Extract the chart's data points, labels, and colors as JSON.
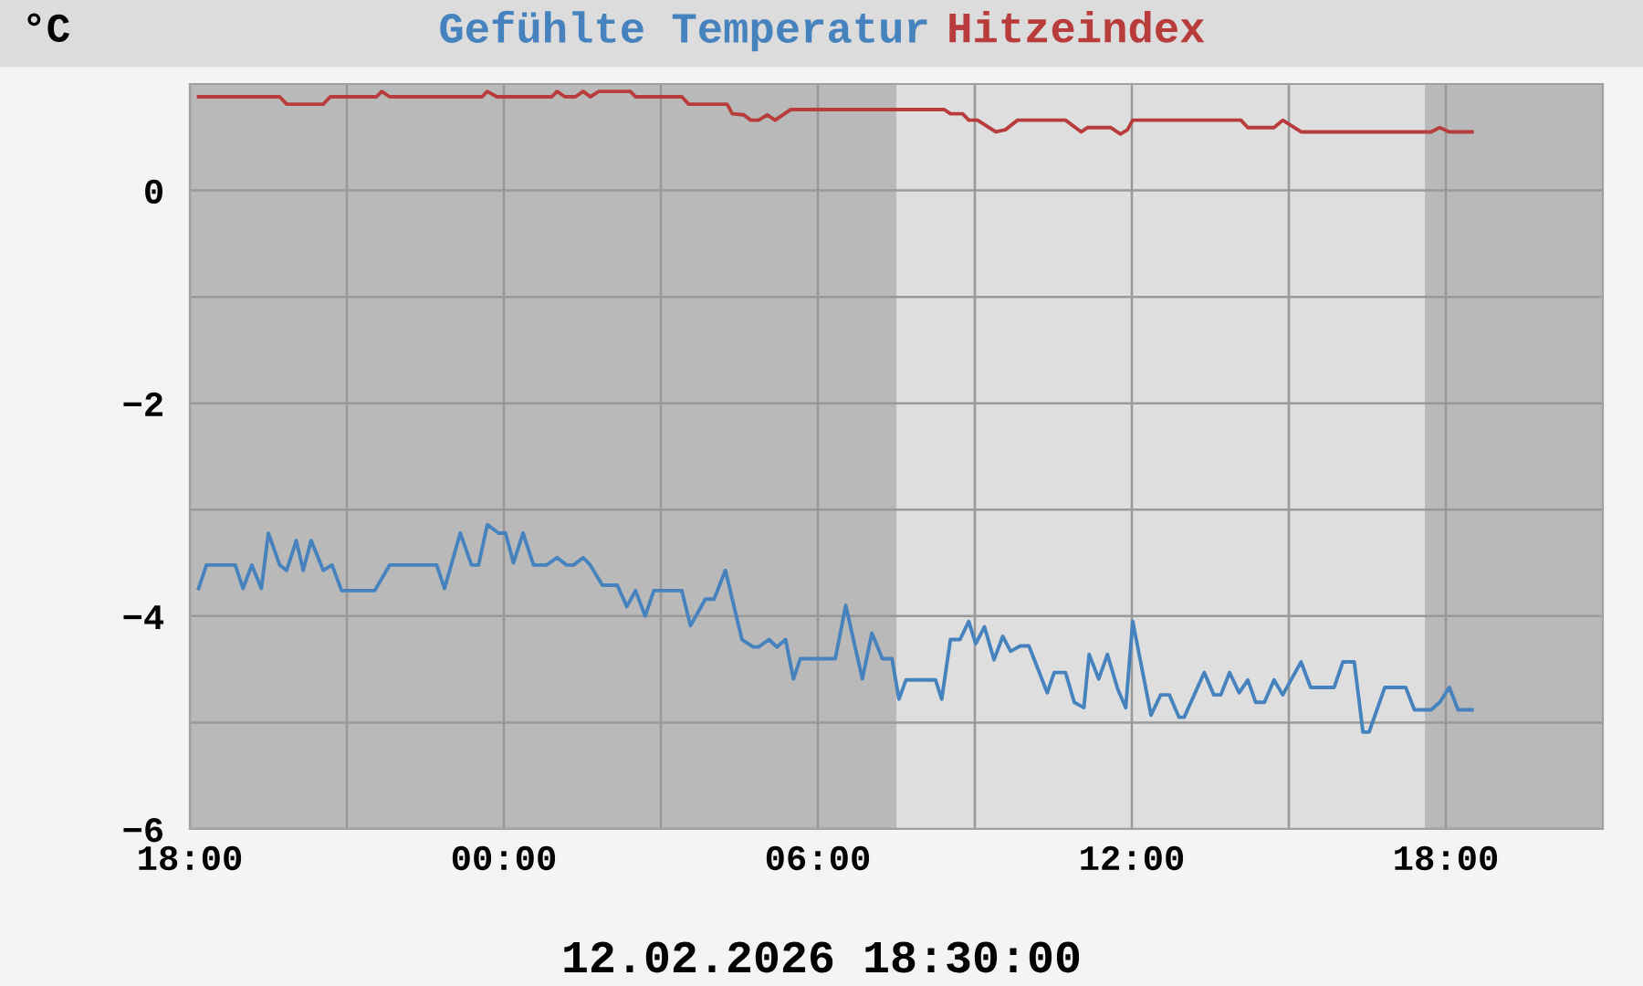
{
  "chart_data": {
    "type": "line",
    "ylabel": "°C",
    "legend": "top",
    "grid": true,
    "annotations": [
      "12.02.2026 18:30:00"
    ],
    "xlim": [
      "2026-02-11T18:00",
      "2026-02-12T21:00"
    ],
    "ylim": [
      -6,
      1
    ],
    "xticks": [
      {
        "value": "2026-02-11T18:00",
        "label": "18:00"
      },
      {
        "value": "2026-02-11T21:00",
        "label": null
      },
      {
        "value": "2026-02-12T00:00",
        "label": "00:00"
      },
      {
        "value": "2026-02-12T03:00",
        "label": null
      },
      {
        "value": "2026-02-12T06:00",
        "label": "06:00"
      },
      {
        "value": "2026-02-12T09:00",
        "label": null
      },
      {
        "value": "2026-02-12T12:00",
        "label": "12:00"
      },
      {
        "value": "2026-02-12T15:00",
        "label": null
      },
      {
        "value": "2026-02-12T18:00",
        "label": "18:00"
      }
    ],
    "yticks": [
      -6,
      {
        "value": -5,
        "label": null
      },
      -4,
      {
        "value": -3,
        "label": null
      },
      -2,
      {
        "value": -1,
        "label": null
      },
      0
    ],
    "bands": [
      {
        "axis": "x",
        "from": "2026-02-12T07:30",
        "to": "2026-02-12T17:36",
        "color": "#dedede"
      }
    ],
    "series": [
      {
        "name": "Gefühlte Temperatur",
        "color": "#4682bd",
        "x": [
          "2026-02-11T18:10",
          "2026-02-11T18:19",
          "2026-02-11T18:52",
          "2026-02-11T19:01",
          "2026-02-11T19:11",
          "2026-02-11T19:22",
          "2026-02-11T19:30",
          "2026-02-11T19:43",
          "2026-02-11T19:51",
          "2026-02-11T20:02",
          "2026-02-11T20:10",
          "2026-02-11T20:19",
          "2026-02-11T20:33",
          "2026-02-11T20:43",
          "2026-02-11T20:54",
          "2026-02-11T21:32",
          "2026-02-11T21:49",
          "2026-02-11T22:43",
          "2026-02-11T22:52",
          "2026-02-11T23:10",
          "2026-02-11T23:23",
          "2026-02-11T23:31",
          "2026-02-11T23:41",
          "2026-02-11T23:54",
          "2026-02-12T00:02",
          "2026-02-12T00:11",
          "2026-02-12T00:22",
          "2026-02-12T00:34",
          "2026-02-12T00:49",
          "2026-02-12T01:01",
          "2026-02-12T01:12",
          "2026-02-12T01:20",
          "2026-02-12T01:31",
          "2026-02-12T01:39",
          "2026-02-12T01:53",
          "2026-02-12T02:10",
          "2026-02-12T02:21",
          "2026-02-12T02:31",
          "2026-02-12T02:42",
          "2026-02-12T02:52",
          "2026-02-12T03:24",
          "2026-02-12T03:34",
          "2026-02-12T03:51",
          "2026-02-12T04:01",
          "2026-02-12T04:14",
          "2026-02-12T04:33",
          "2026-02-12T04:46",
          "2026-02-12T04:52",
          "2026-02-12T05:04",
          "2026-02-12T05:13",
          "2026-02-12T05:23",
          "2026-02-12T05:32",
          "2026-02-12T05:40",
          "2026-02-12T06:20",
          "2026-02-12T06:32",
          "2026-02-12T06:51",
          "2026-02-12T07:02",
          "2026-02-12T07:14",
          "2026-02-12T07:25",
          "2026-02-12T07:33",
          "2026-02-12T07:41",
          "2026-02-12T08:15",
          "2026-02-12T08:22",
          "2026-02-12T08:32",
          "2026-02-12T08:43",
          "2026-02-12T08:53",
          "2026-02-12T09:01",
          "2026-02-12T09:11",
          "2026-02-12T09:22",
          "2026-02-12T09:32",
          "2026-02-12T09:41",
          "2026-02-12T09:52",
          "2026-02-12T10:02",
          "2026-02-12T10:23",
          "2026-02-12T10:31",
          "2026-02-12T10:44",
          "2026-02-12T10:54",
          "2026-02-12T11:05",
          "2026-02-12T11:11",
          "2026-02-12T11:22",
          "2026-02-12T11:32",
          "2026-02-12T11:44",
          "2026-02-12T11:53",
          "2026-02-12T12:01",
          "2026-02-12T12:22",
          "2026-02-12T12:33",
          "2026-02-12T12:43",
          "2026-02-12T12:54",
          "2026-02-12T13:00",
          "2026-02-12T13:23",
          "2026-02-12T13:34",
          "2026-02-12T13:42",
          "2026-02-12T13:52",
          "2026-02-12T14:03",
          "2026-02-12T14:13",
          "2026-02-12T14:22",
          "2026-02-12T14:32",
          "2026-02-12T14:43",
          "2026-02-12T14:53",
          "2026-02-12T15:14",
          "2026-02-12T15:25",
          "2026-02-12T15:52",
          "2026-02-12T16:02",
          "2026-02-12T16:15",
          "2026-02-12T16:25",
          "2026-02-12T16:32",
          "2026-02-12T16:50",
          "2026-02-12T17:14",
          "2026-02-12T17:24",
          "2026-02-12T17:43",
          "2026-02-12T17:53",
          "2026-02-12T18:04",
          "2026-02-12T18:14",
          "2026-02-12T18:30"
        ],
        "values": [
          -3.74,
          -3.52,
          -3.52,
          -3.74,
          -3.52,
          -3.74,
          -3.22,
          -3.52,
          -3.57,
          -3.29,
          -3.57,
          -3.29,
          -3.57,
          -3.52,
          -3.76,
          -3.76,
          -3.52,
          -3.52,
          -3.74,
          -3.22,
          -3.52,
          -3.52,
          -3.14,
          -3.22,
          -3.22,
          -3.5,
          -3.22,
          -3.52,
          -3.52,
          -3.45,
          -3.52,
          -3.52,
          -3.45,
          -3.52,
          -3.71,
          -3.71,
          -3.91,
          -3.76,
          -4.0,
          -3.76,
          -3.76,
          -4.09,
          -3.84,
          -3.84,
          -3.57,
          -4.22,
          -4.29,
          -4.29,
          -4.22,
          -4.29,
          -4.22,
          -4.59,
          -4.4,
          -4.4,
          -3.9,
          -4.59,
          -4.16,
          -4.4,
          -4.4,
          -4.78,
          -4.6,
          -4.6,
          -4.78,
          -4.22,
          -4.22,
          -4.05,
          -4.26,
          -4.1,
          -4.41,
          -4.19,
          -4.33,
          -4.28,
          -4.28,
          -4.72,
          -4.53,
          -4.53,
          -4.81,
          -4.86,
          -4.36,
          -4.59,
          -4.36,
          -4.69,
          -4.86,
          -4.05,
          -4.93,
          -4.74,
          -4.74,
          -4.95,
          -4.95,
          -4.53,
          -4.74,
          -4.74,
          -4.53,
          -4.72,
          -4.6,
          -4.81,
          -4.81,
          -4.6,
          -4.74,
          -4.43,
          -4.67,
          -4.67,
          -4.43,
          -4.43,
          -5.09,
          -5.09,
          -4.67,
          -4.67,
          -4.88,
          -4.88,
          -4.81,
          -4.67,
          -4.88,
          -4.88
        ]
      },
      {
        "name": "Hitzeindex",
        "color": "#b83c3c",
        "x": [
          "2026-02-11T18:10",
          "2026-02-11T19:43",
          "2026-02-11T19:51",
          "2026-02-11T20:33",
          "2026-02-11T20:41",
          "2026-02-11T21:34",
          "2026-02-11T21:40",
          "2026-02-11T21:49",
          "2026-02-11T23:35",
          "2026-02-11T23:41",
          "2026-02-11T23:52",
          "2026-02-12T00:55",
          "2026-02-12T01:01",
          "2026-02-12T01:10",
          "2026-02-12T01:22",
          "2026-02-12T01:31",
          "2026-02-12T01:39",
          "2026-02-12T01:49",
          "2026-02-12T02:25",
          "2026-02-12T02:31",
          "2026-02-12T03:24",
          "2026-02-12T03:32",
          "2026-02-12T04:16",
          "2026-02-12T04:22",
          "2026-02-12T04:35",
          "2026-02-12T04:43",
          "2026-02-12T04:52",
          "2026-02-12T05:02",
          "2026-02-12T05:11",
          "2026-02-12T05:29",
          "2026-02-12T08:25",
          "2026-02-12T08:32",
          "2026-02-12T08:46",
          "2026-02-12T08:53",
          "2026-02-12T09:03",
          "2026-02-12T09:24",
          "2026-02-12T09:35",
          "2026-02-12T09:49",
          "2026-02-12T10:44",
          "2026-02-12T11:02",
          "2026-02-12T11:09",
          "2026-02-12T11:36",
          "2026-02-12T11:47",
          "2026-02-12T11:55",
          "2026-02-12T12:01",
          "2026-02-12T14:05",
          "2026-02-12T14:13",
          "2026-02-12T14:43",
          "2026-02-12T14:53",
          "2026-02-12T15:14",
          "2026-02-12T17:43",
          "2026-02-12T17:53",
          "2026-02-12T18:04",
          "2026-02-12T18:30"
        ],
        "values": [
          0.88,
          0.88,
          0.81,
          0.81,
          0.88,
          0.88,
          0.93,
          0.88,
          0.88,
          0.93,
          0.88,
          0.88,
          0.93,
          0.88,
          0.88,
          0.93,
          0.88,
          0.93,
          0.93,
          0.88,
          0.88,
          0.81,
          0.81,
          0.72,
          0.71,
          0.66,
          0.66,
          0.71,
          0.66,
          0.76,
          0.76,
          0.72,
          0.72,
          0.66,
          0.66,
          0.55,
          0.57,
          0.66,
          0.66,
          0.55,
          0.59,
          0.59,
          0.53,
          0.57,
          0.66,
          0.66,
          0.59,
          0.59,
          0.66,
          0.55,
          0.55,
          0.59,
          0.55,
          0.55
        ]
      }
    ]
  }
}
